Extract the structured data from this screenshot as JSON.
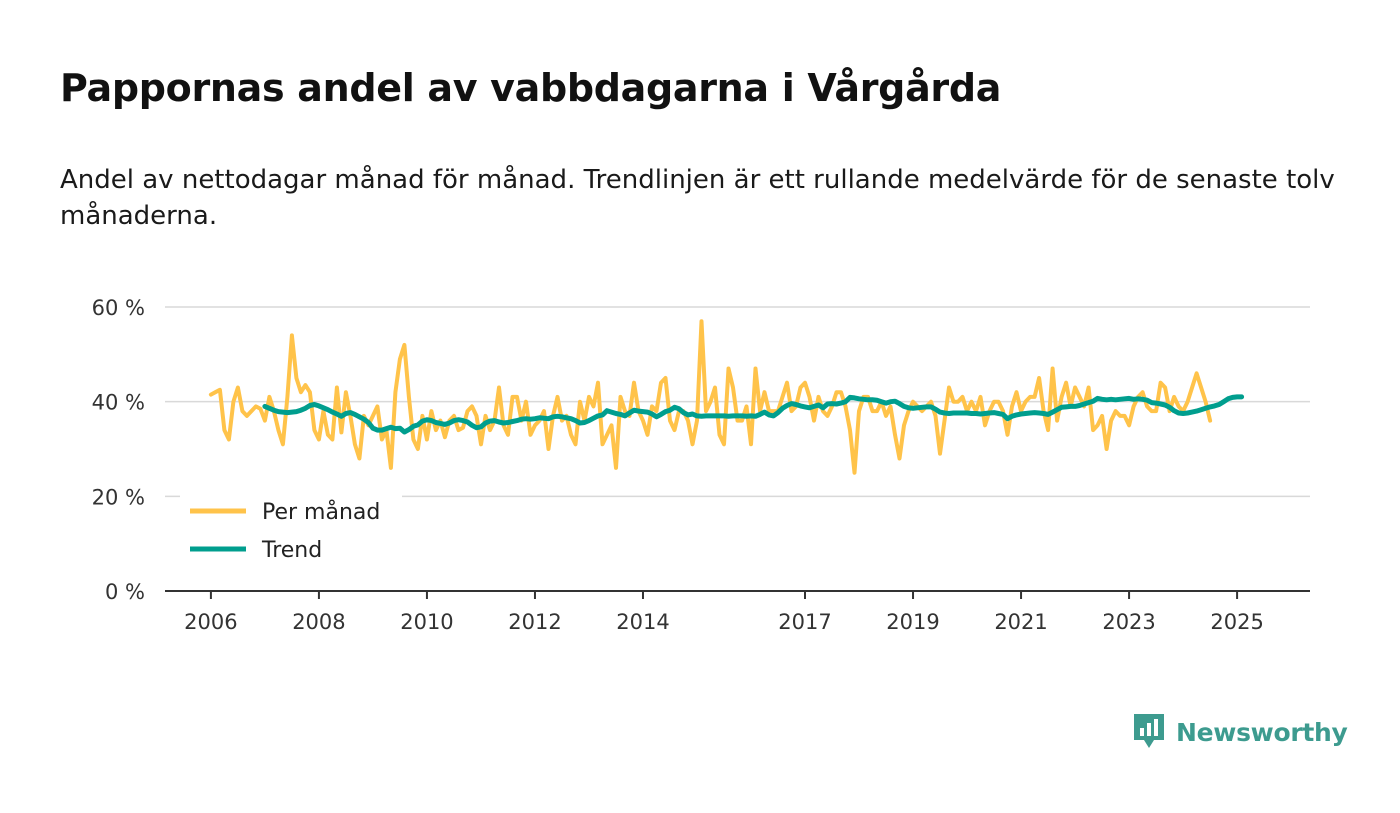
{
  "brand": {
    "name": "Newsworthy",
    "logo_icon": "bar-chart-bubble-icon",
    "color": "#3d9b8f"
  },
  "chart_data": {
    "type": "line",
    "title": "Pappornas andel av vabbdagarna i Vårgårda",
    "subtitle": "Andel av nettodagar månad för månad. Trendlinjen är ett rullande medelvärde för de senaste tolv månaderna.",
    "xlabel": "",
    "ylabel": "",
    "x_start": 2006.0,
    "x_step": 0.0833333,
    "xlim": [
      2005.15,
      2026.35
    ],
    "ylim": [
      0,
      60
    ],
    "y_ticks": [
      0,
      20,
      40,
      60
    ],
    "y_tick_labels": [
      "0 %",
      "20 %",
      "40 %",
      "60 %"
    ],
    "x_ticks": [
      2006,
      2008,
      2010,
      2012,
      2014,
      2017,
      2019,
      2021,
      2023,
      2025
    ],
    "x_tick_labels": [
      "2006",
      "2008",
      "2010",
      "2012",
      "2014",
      "2017",
      "2019",
      "2021",
      "2023",
      "2025"
    ],
    "grid": true,
    "legend_position": "bottom-left",
    "series": [
      {
        "name": "Per månad",
        "color": "#ffc34a",
        "values": [
          41.5,
          42,
          42.5,
          34,
          32,
          40,
          43,
          38,
          37,
          38,
          39,
          38.5,
          36,
          41,
          38,
          34,
          31,
          41,
          54,
          45,
          42,
          43.5,
          42,
          34,
          32,
          38,
          33,
          32,
          43,
          33.5,
          42,
          37,
          31,
          28,
          37,
          35,
          37,
          39,
          32,
          34,
          26,
          42,
          49,
          52,
          41,
          32,
          30,
          37,
          32,
          38,
          34,
          36,
          32.5,
          36,
          37,
          34,
          34.5,
          38,
          39,
          37,
          31,
          37,
          34,
          36,
          43,
          35,
          33,
          41,
          41,
          36,
          40,
          33,
          35,
          36,
          38,
          30,
          37,
          41,
          36,
          37,
          33,
          31,
          40,
          36,
          41,
          39,
          44,
          31,
          33,
          35,
          26,
          41,
          38,
          37,
          44,
          38,
          36,
          33,
          39,
          38,
          44,
          45,
          36,
          34,
          38,
          38,
          36,
          31,
          36,
          57,
          38,
          40,
          43,
          33,
          31,
          47,
          43,
          36,
          36,
          39,
          31,
          47,
          38,
          42,
          38,
          38,
          38,
          41,
          44,
          38,
          39,
          43,
          44,
          41,
          36,
          41,
          38,
          37,
          39,
          42,
          42,
          39,
          34,
          25,
          38,
          41,
          41,
          38,
          38,
          40,
          37,
          39,
          33,
          28,
          35,
          38,
          40,
          39,
          38,
          39,
          40,
          37,
          29,
          36,
          43,
          40,
          40,
          41,
          38,
          40,
          38,
          41,
          35,
          38,
          40,
          40,
          38,
          33,
          39,
          42,
          38,
          40,
          41,
          41,
          45,
          38,
          34,
          47,
          36,
          41,
          44,
          39,
          43,
          41,
          39,
          43,
          34,
          35,
          37,
          30,
          36,
          38,
          37,
          37,
          35,
          39,
          41,
          42,
          39,
          38,
          38,
          44,
          43,
          38,
          41,
          39,
          38,
          40,
          43,
          46,
          43,
          40,
          36
        ]
      },
      {
        "name": "Trend",
        "color": "#009e8e",
        "start_index": 12,
        "values": [
          39,
          38.6,
          38.2,
          37.9,
          37.8,
          37.7,
          37.8,
          37.9,
          38.2,
          38.6,
          39.2,
          39.4,
          39.1,
          38.7,
          38.3,
          37.8,
          37.4,
          36.9,
          37.5,
          37.7,
          37.3,
          36.8,
          36.3,
          35.6,
          34.4,
          34,
          34,
          34.3,
          34.6,
          34.3,
          34.4,
          33.6,
          34.1,
          34.8,
          35.1,
          35.9,
          36.2,
          36,
          35.6,
          35.4,
          35.2,
          35.5,
          36,
          36.2,
          36,
          35.7,
          35,
          34.5,
          34.7,
          35.5,
          35.9,
          36,
          35.7,
          35.5,
          35.6,
          35.8,
          36,
          36.3,
          36.4,
          36.3,
          36.4,
          36.6,
          36.5,
          36.4,
          36.8,
          36.9,
          36.8,
          36.6,
          36.4,
          36,
          35.5,
          35.6,
          36,
          36.5,
          37,
          37.2,
          38.1,
          37.8,
          37.5,
          37.3,
          37,
          37.6,
          38.2,
          38,
          37.9,
          37.8,
          37.4,
          36.8,
          37.3,
          37.9,
          38.2,
          38.8,
          38.5,
          37.7,
          37.2,
          37.4,
          37,
          36.9,
          37,
          37,
          37,
          37,
          37,
          36.9,
          37,
          37,
          37,
          36.9,
          37,
          36.9,
          37.3,
          37.8,
          37.2,
          37,
          37.7,
          38.6,
          39.2,
          39.6,
          39.4,
          39.1,
          38.9,
          38.7,
          39,
          39.3,
          38.7,
          39.5,
          39.6,
          39.5,
          39.7,
          40,
          40.9,
          40.8,
          40.6,
          40.5,
          40.4,
          40.4,
          40.3,
          40,
          39.7,
          40,
          40.1,
          39.6,
          39,
          38.7,
          38.6,
          38.7,
          38.8,
          38.9,
          38.9,
          38.4,
          37.8,
          37.6,
          37.5,
          37.6,
          37.6,
          37.6,
          37.6,
          37.5,
          37.5,
          37.4,
          37.5,
          37.6,
          37.7,
          37.5,
          37.3,
          36.4,
          36.9,
          37.2,
          37.4,
          37.5,
          37.6,
          37.7,
          37.6,
          37.5,
          37.3,
          37.8,
          38.3,
          38.8,
          38.9,
          39,
          39,
          39.2,
          39.5,
          39.8,
          40.1,
          40.7,
          40.5,
          40.4,
          40.5,
          40.4,
          40.5,
          40.6,
          40.7,
          40.5,
          40.6,
          40.5,
          40.3,
          39.8,
          39.7,
          39.5,
          39.3,
          38.8,
          38.1,
          37.6,
          37.5,
          37.6,
          37.8,
          38,
          38.3,
          38.6,
          38.9,
          39.1,
          39.4,
          40,
          40.6,
          40.9,
          41,
          41
        ]
      }
    ]
  }
}
